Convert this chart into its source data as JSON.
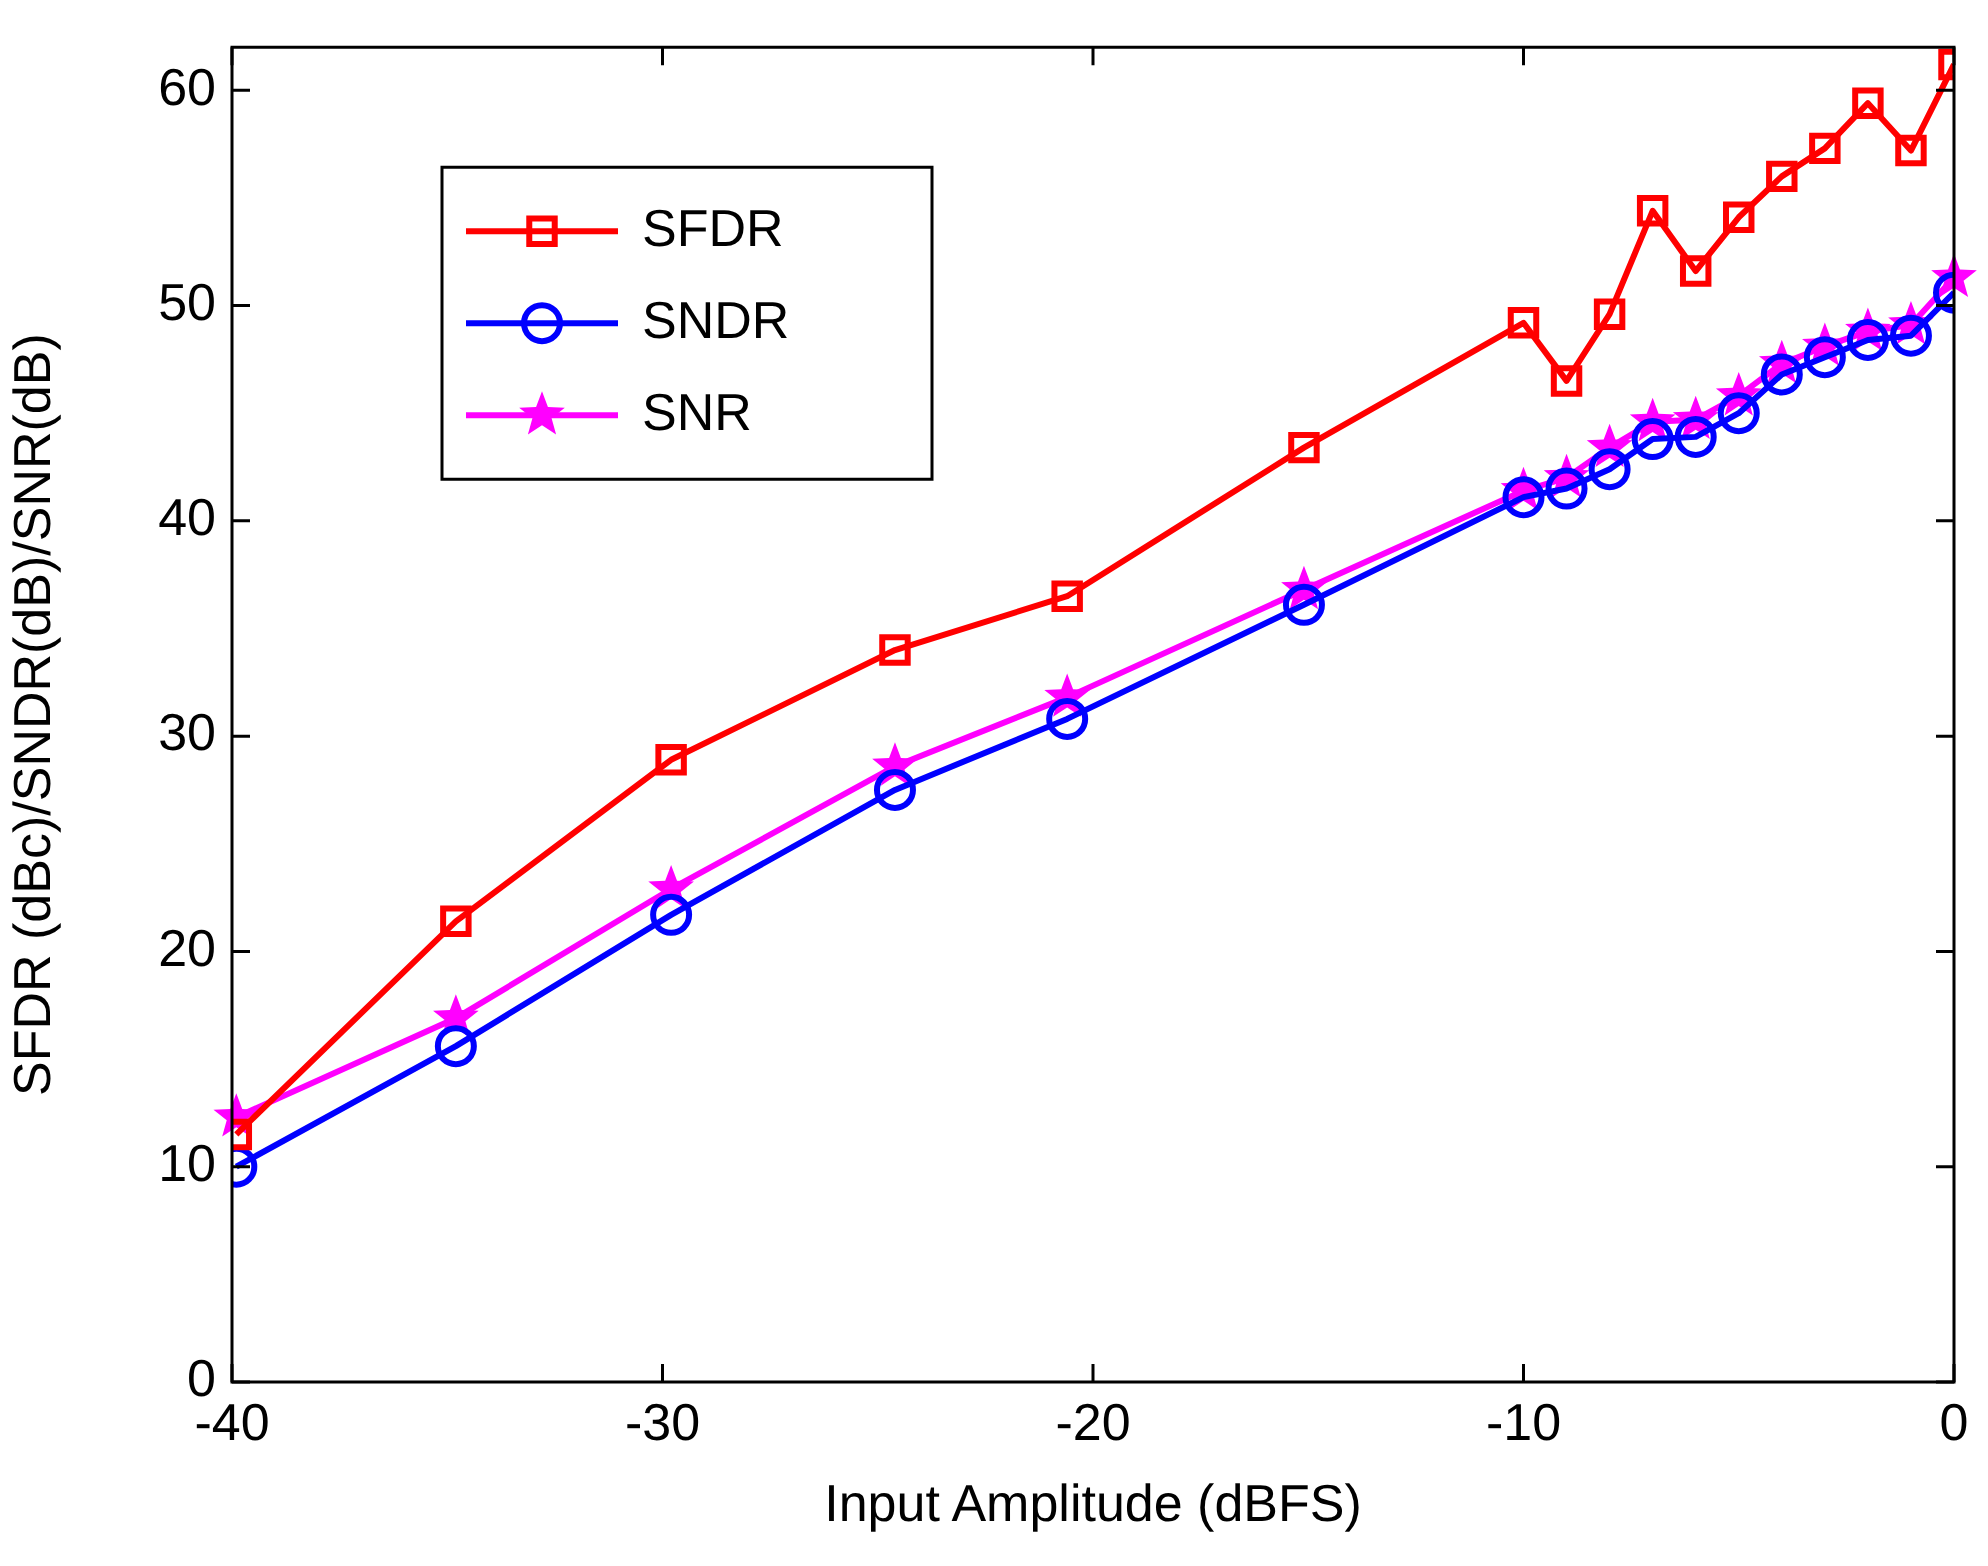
{
  "chart_data": {
    "type": "line",
    "xlabel": "Input Amplitude (dBFS)",
    "ylabel": "SFDR (dBc)/SNDR(dB)/SNR(dB)",
    "x": [
      -39.9,
      -34.8,
      -29.8,
      -24.6,
      -20.6,
      -15.1,
      -10,
      -9,
      -8,
      -7,
      -6,
      -5,
      -4,
      -3,
      -2,
      -1,
      0
    ],
    "series": [
      {
        "name": "SFDR",
        "color": "#ff0000",
        "marker": "square",
        "values": [
          11.5,
          21.4,
          28.9,
          34.0,
          36.5,
          43.4,
          49.2,
          46.5,
          49.6,
          54.4,
          51.6,
          54.1,
          56.0,
          57.3,
          59.4,
          57.2,
          61.2
        ]
      },
      {
        "name": "SNDR",
        "color": "#0000ff",
        "marker": "circle",
        "values": [
          10.0,
          15.6,
          21.7,
          27.5,
          30.8,
          36.1,
          41.1,
          41.5,
          42.4,
          43.8,
          43.9,
          45.0,
          46.8,
          47.6,
          48.4,
          48.6,
          50.6
        ]
      },
      {
        "name": "SNR",
        "color": "#ff00ff",
        "marker": "star",
        "values": [
          12.3,
          16.9,
          22.9,
          28.6,
          31.8,
          36.8,
          41.4,
          42.0,
          43.4,
          44.6,
          44.7,
          45.8,
          47.3,
          48.1,
          48.8,
          49.1,
          51.3
        ]
      }
    ],
    "xlim": [
      -40,
      0
    ],
    "xticks": [
      -40,
      -30,
      -20,
      -10,
      0
    ],
    "ylim": [
      0,
      62
    ],
    "yticks": [
      0,
      10,
      20,
      30,
      40,
      50,
      60
    ],
    "legend": "top left",
    "line_style": "solid"
  }
}
